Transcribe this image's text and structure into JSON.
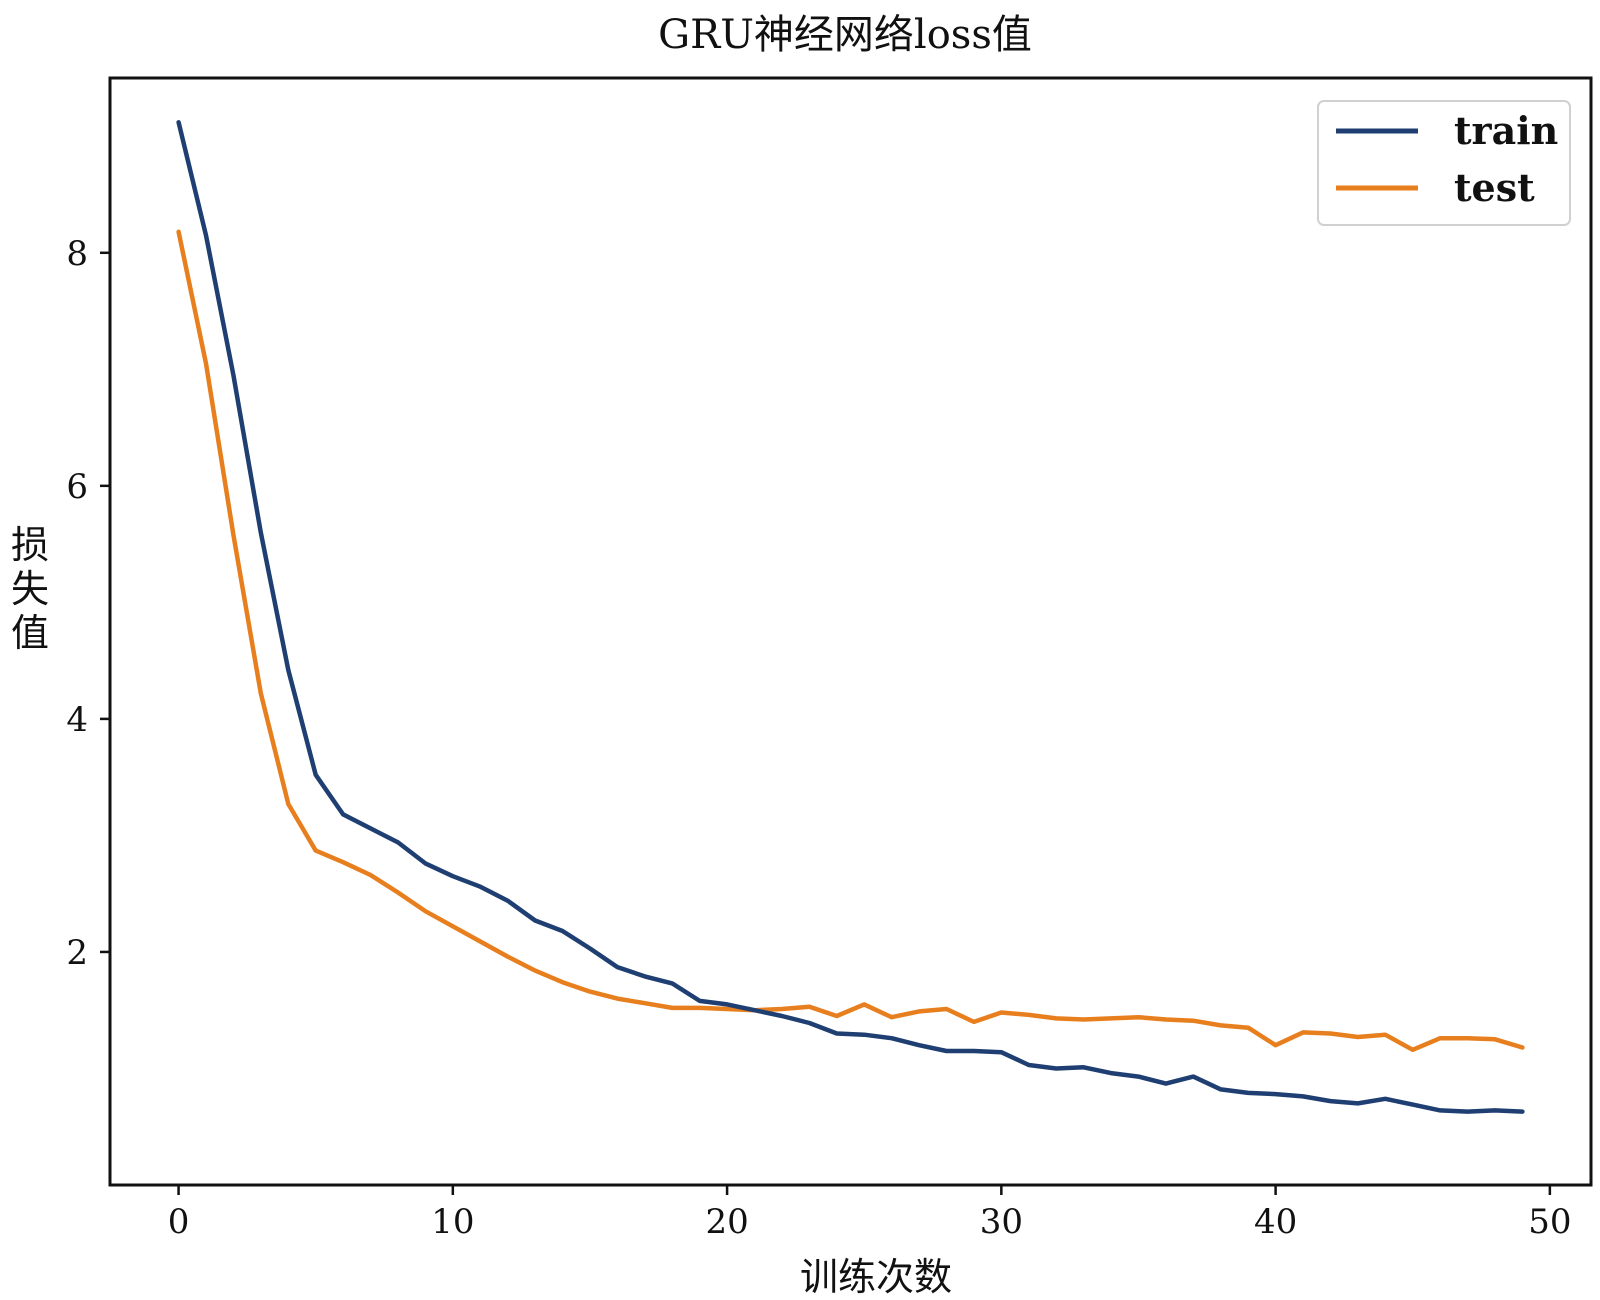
{
  "chart_data": {
    "type": "line",
    "title": "GRU神经网络loss值",
    "xlabel": "训练次数",
    "ylabel": "损失值",
    "xlim": [
      -2.5,
      51.5
    ],
    "ylim": [
      0,
      9.5
    ],
    "xticks": [
      0,
      10,
      20,
      30,
      40,
      50
    ],
    "yticks": [
      2,
      4,
      6,
      8
    ],
    "grid": false,
    "legend_position": "top-right",
    "x": [
      0,
      1,
      2,
      3,
      4,
      5,
      6,
      7,
      8,
      9,
      10,
      11,
      12,
      13,
      14,
      15,
      16,
      17,
      18,
      19,
      20,
      21,
      22,
      23,
      24,
      25,
      26,
      27,
      28,
      29,
      30,
      31,
      32,
      33,
      34,
      35,
      36,
      37,
      38,
      39,
      40,
      41,
      42,
      43,
      44,
      45,
      46,
      47,
      48,
      49
    ],
    "series": [
      {
        "name": "train",
        "color": "#1f3f73",
        "values": [
          9.12,
          8.15,
          6.95,
          5.6,
          4.42,
          3.52,
          3.18,
          3.06,
          2.94,
          2.76,
          2.65,
          2.56,
          2.44,
          2.27,
          2.18,
          2.03,
          1.87,
          1.79,
          1.73,
          1.58,
          1.55,
          1.5,
          1.45,
          1.39,
          1.3,
          1.29,
          1.26,
          1.2,
          1.15,
          1.15,
          1.14,
          1.03,
          1.0,
          1.01,
          0.96,
          0.93,
          0.87,
          0.93,
          0.82,
          0.79,
          0.78,
          0.76,
          0.72,
          0.7,
          0.74,
          0.69,
          0.64,
          0.63,
          0.64,
          0.63
        ]
      },
      {
        "name": "test",
        "color": "#e87f1e",
        "values": [
          8.18,
          7.05,
          5.58,
          4.22,
          3.27,
          2.87,
          2.77,
          2.66,
          2.51,
          2.35,
          2.22,
          2.09,
          1.96,
          1.84,
          1.74,
          1.66,
          1.6,
          1.56,
          1.52,
          1.52,
          1.51,
          1.5,
          1.51,
          1.53,
          1.45,
          1.55,
          1.44,
          1.49,
          1.51,
          1.4,
          1.48,
          1.46,
          1.43,
          1.42,
          1.43,
          1.44,
          1.42,
          1.41,
          1.37,
          1.35,
          1.2,
          1.31,
          1.3,
          1.27,
          1.29,
          1.16,
          1.26,
          1.26,
          1.25,
          1.18
        ]
      }
    ]
  }
}
